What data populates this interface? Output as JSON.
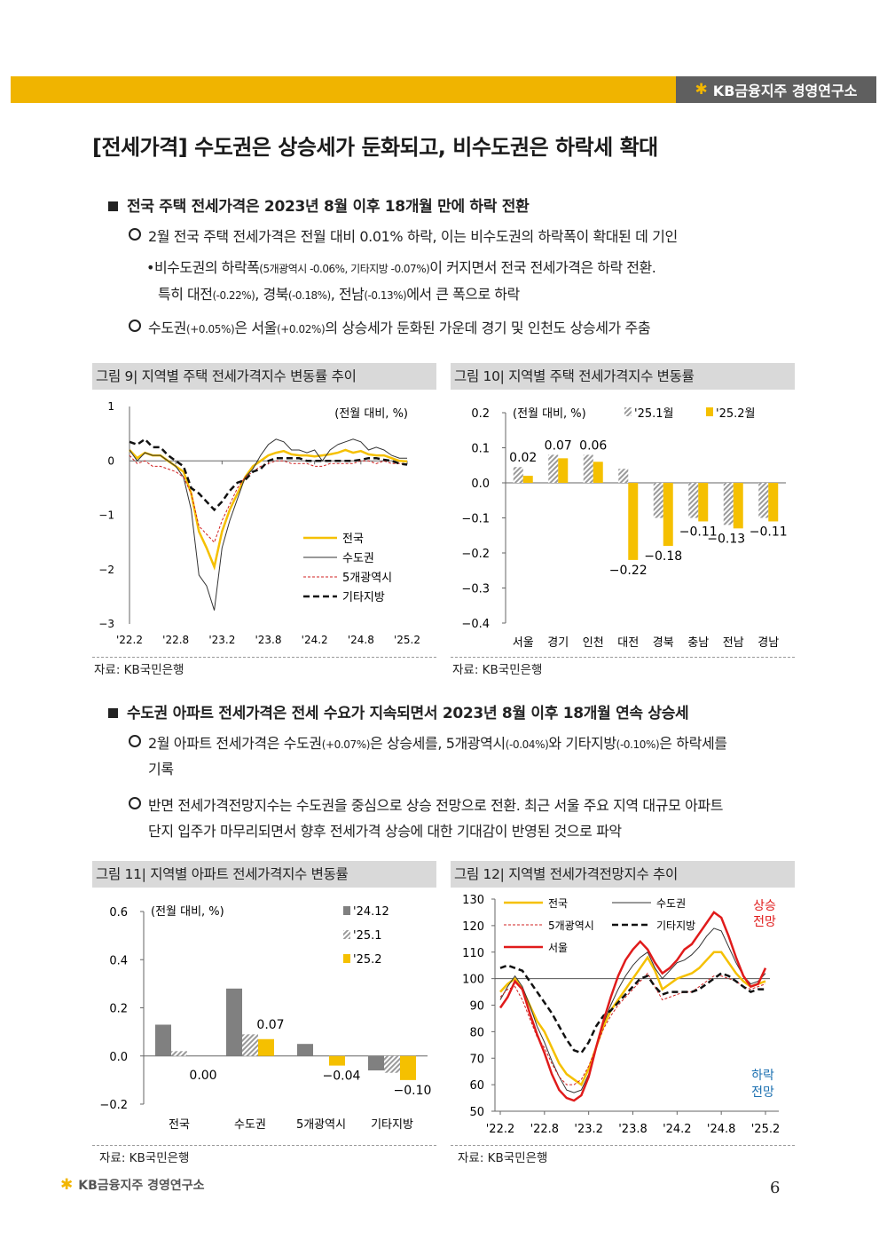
{
  "header": {
    "brand": "KB금융지주 경영연구소"
  },
  "title": "[전세가격] 수도권은 상승세가 둔화되고, 비수도권은 하락세 확대",
  "section1": {
    "heading": "전국 주택 전세가격은 2023년 8월 이후 18개월 만에 하락 전환",
    "bullet1": "2월 전국 주택 전세가격은 전월 대비 0.01% 하락, 이는 비수도권의 하락폭이 확대된 데 기인",
    "sub1_a": "비수도권의 하락폭",
    "sub1_b": "(5개광역시 -0.06%, 기타지방 -0.07%)",
    "sub1_c": "이 커지면서 전국 전세가격은 하락 전환.",
    "sub1_d": "특히 대전",
    "sub1_e": "(-0.22%)",
    "sub1_f": ", 경북",
    "sub1_g": "(-0.18%)",
    "sub1_h": ", 전남",
    "sub1_i": "(-0.13%)",
    "sub1_j": "에서 큰 폭으로 하락",
    "bullet2_a": "수도권",
    "bullet2_b": "(+0.05%)",
    "bullet2_c": "은 서울",
    "bullet2_d": "(+0.02%)",
    "bullet2_e": "의 상승세가 둔화된 가운데 경기 및 인천도 상승세가 주춤"
  },
  "section2": {
    "heading": "수도권 아파트 전세가격은 전세 수요가 지속되면서 2023년 8월 이후 18개월 연속 상승세",
    "bullet1_a": "2월 아파트 전세가격은 수도권",
    "bullet1_b": "(+0.07%)",
    "bullet1_c": "은 상승세를, 5개광역시",
    "bullet1_d": "(-0.04%)",
    "bullet1_e": "와 기타지방",
    "bullet1_f": "(-0.10%)",
    "bullet1_g": "은 하락세를",
    "bullet1_h": "기록",
    "bullet2_line1": "반면 전세가격전망지수는 수도권을 중심으로 상승 전망으로 전환. 최근 서울 주요 지역 대규모 아파트",
    "bullet2_line2": "단지 입주가 마무리되면서 향후 전세가격 상승에 대한 기대감이 반영된 것으로 파악"
  },
  "figures": {
    "fig9": {
      "caption": "그림 9| 지역별 주택 전세가격지수 변동률 추이",
      "source": "자료: KB국민은행"
    },
    "fig10": {
      "caption": "그림 10| 지역별 주택 전세가격지수 변동률",
      "source": "자료: KB국민은행"
    },
    "fig11": {
      "caption": "그림 11| 지역별 아파트 전세가격지수 변동률",
      "source": "자료: KB국민은행"
    },
    "fig12": {
      "caption": "그림 12| 지역별 전세가격전망지수 추이",
      "source": "자료: KB국민은행"
    }
  },
  "chart_data": [
    {
      "id": "fig9",
      "type": "line",
      "unit_note": "(전월 대비, %)",
      "ylim": [
        -3,
        1
      ],
      "yticks": [
        "1",
        "0",
        "−1",
        "−2",
        "−3"
      ],
      "xticks": [
        "'22.2",
        "'22.8",
        "'23.2",
        "'23.8",
        "'24.2",
        "'24.8",
        "'25.2"
      ],
      "x": [
        "2022-02",
        "2022-03",
        "2022-04",
        "2022-05",
        "2022-06",
        "2022-07",
        "2022-08",
        "2022-09",
        "2022-10",
        "2022-11",
        "2022-12",
        "2023-01",
        "2023-02",
        "2023-03",
        "2023-04",
        "2023-05",
        "2023-06",
        "2023-07",
        "2023-08",
        "2023-09",
        "2023-10",
        "2023-11",
        "2023-12",
        "2024-01",
        "2024-02",
        "2024-03",
        "2024-04",
        "2024-05",
        "2024-06",
        "2024-07",
        "2024-08",
        "2024-09",
        "2024-10",
        "2024-11",
        "2024-12",
        "2025-01",
        "2025-02"
      ],
      "series": [
        {
          "name": "전국",
          "color": "#f5c000",
          "values": [
            0.2,
            0.05,
            0.15,
            0.1,
            0.1,
            0.0,
            -0.1,
            -0.2,
            -0.6,
            -1.3,
            -1.6,
            -1.95,
            -1.3,
            -0.9,
            -0.6,
            -0.3,
            -0.1,
            0.0,
            0.1,
            0.15,
            0.18,
            0.12,
            0.1,
            0.1,
            0.08,
            0.1,
            0.12,
            0.15,
            0.2,
            0.15,
            0.18,
            0.12,
            0.1,
            0.1,
            0.05,
            0.0,
            -0.01
          ]
        },
        {
          "name": "수도권",
          "color": "#333333",
          "values": [
            0.2,
            0.0,
            0.15,
            0.1,
            0.1,
            0.0,
            -0.1,
            -0.3,
            -0.9,
            -2.1,
            -2.3,
            -2.75,
            -1.6,
            -1.1,
            -0.7,
            -0.3,
            -0.15,
            0.1,
            0.3,
            0.4,
            0.35,
            0.2,
            0.2,
            0.15,
            0.2,
            0.0,
            0.2,
            0.3,
            0.35,
            0.4,
            0.35,
            0.2,
            0.25,
            0.2,
            0.1,
            0.05,
            0.05
          ]
        },
        {
          "name": "5개광역시",
          "color": "#d02020",
          "values": [
            0.1,
            -0.05,
            0.0,
            -0.1,
            -0.1,
            -0.15,
            -0.2,
            -0.3,
            -0.6,
            -1.2,
            -1.35,
            -1.5,
            -1.1,
            -0.8,
            -0.5,
            -0.3,
            -0.2,
            -0.1,
            -0.05,
            0.0,
            0.0,
            -0.05,
            -0.05,
            -0.05,
            -0.1,
            -0.1,
            -0.05,
            -0.05,
            -0.05,
            -0.05,
            0.0,
            0.0,
            -0.05,
            0.0,
            -0.05,
            -0.05,
            -0.06
          ]
        },
        {
          "name": "기타지방",
          "color": "#111111",
          "values": [
            0.35,
            0.3,
            0.4,
            0.25,
            0.25,
            0.1,
            0.0,
            -0.1,
            -0.5,
            -0.6,
            -0.75,
            -0.9,
            -0.75,
            -0.55,
            -0.4,
            -0.35,
            -0.2,
            -0.15,
            0.0,
            0.05,
            0.05,
            0.05,
            0.05,
            0.0,
            0.0,
            0.0,
            0.0,
            0.0,
            0.0,
            0.0,
            0.02,
            0.05,
            0.05,
            0.02,
            0.0,
            -0.05,
            -0.07
          ]
        }
      ]
    },
    {
      "id": "fig10",
      "type": "bar",
      "unit_note": "(전월 대비, %)",
      "ylim": [
        -0.4,
        0.2
      ],
      "yticks": [
        "0.2",
        "0.1",
        "0.0",
        "−0.1",
        "−0.2",
        "−0.3",
        "−0.4"
      ],
      "categories": [
        "서울",
        "경기",
        "인천",
        "대전",
        "경북",
        "충남",
        "전남",
        "경남"
      ],
      "series": [
        {
          "name": "'25.1월",
          "color": "#aaaaaa",
          "values": [
            0.045,
            0.08,
            0.08,
            0.04,
            -0.1,
            -0.1,
            -0.12,
            -0.1
          ]
        },
        {
          "name": "'25.2월",
          "color": "#f5c000",
          "values": [
            0.02,
            0.07,
            0.06,
            -0.22,
            -0.18,
            -0.11,
            -0.13,
            -0.11
          ]
        }
      ],
      "data_labels": [
        "0.02",
        "0.07",
        "0.06",
        "−0.22",
        "−0.18",
        "−0.11",
        "−0.13",
        "−0.11"
      ]
    },
    {
      "id": "fig11",
      "type": "bar",
      "unit_note": "(전월 대비, %)",
      "ylim": [
        -0.2,
        0.6
      ],
      "yticks": [
        "0.6",
        "0.4",
        "0.2",
        "0.0",
        "−0.2"
      ],
      "categories": [
        "전국",
        "수도권",
        "5개광역시",
        "기타지방"
      ],
      "series": [
        {
          "name": "'24.12",
          "color": "#808080",
          "values": [
            0.13,
            0.28,
            0.05,
            -0.06
          ]
        },
        {
          "name": "'25.1",
          "color": "#aaaaaa",
          "values": [
            0.02,
            0.09,
            0.0,
            -0.07
          ]
        },
        {
          "name": "'25.2",
          "color": "#f5c000",
          "values": [
            0.0,
            0.07,
            -0.04,
            -0.1
          ]
        }
      ],
      "data_labels": [
        "0.00",
        "0.07",
        "−0.04",
        "−0.10"
      ]
    },
    {
      "id": "fig12",
      "type": "line",
      "ylim": [
        50,
        130
      ],
      "yticks": [
        "130",
        "120",
        "110",
        "100",
        "90",
        "80",
        "70",
        "60",
        "50"
      ],
      "xticks": [
        "'22.2",
        "'22.8",
        "'23.2",
        "'23.8",
        "'24.2",
        "'24.8",
        "'25.2"
      ],
      "annotations": {
        "up_line1": "상승",
        "up_line2": "전망",
        "down_line1": "하락",
        "down_line2": "전망"
      },
      "x": [
        "2022-02",
        "2022-03",
        "2022-04",
        "2022-05",
        "2022-06",
        "2022-07",
        "2022-08",
        "2022-09",
        "2022-10",
        "2022-11",
        "2022-12",
        "2023-01",
        "2023-02",
        "2023-03",
        "2023-04",
        "2023-05",
        "2023-06",
        "2023-07",
        "2023-08",
        "2023-09",
        "2023-10",
        "2023-11",
        "2023-12",
        "2024-01",
        "2024-02",
        "2024-03",
        "2024-04",
        "2024-05",
        "2024-06",
        "2024-07",
        "2024-08",
        "2024-09",
        "2024-10",
        "2024-11",
        "2024-12",
        "2025-01",
        "2025-02"
      ],
      "series": [
        {
          "name": "전국",
          "color": "#f5c000",
          "values": [
            95,
            98,
            100,
            96,
            90,
            84,
            80,
            74,
            68,
            64,
            62,
            60,
            66,
            74,
            82,
            88,
            92,
            96,
            100,
            104,
            108,
            103,
            96,
            98,
            100,
            101,
            102,
            104,
            107,
            110,
            110,
            106,
            102,
            99,
            97,
            98,
            99
          ]
        },
        {
          "name": "수도권",
          "color": "#333333",
          "values": [
            92,
            97,
            101,
            97,
            90,
            82,
            76,
            69,
            63,
            58,
            57,
            58,
            64,
            74,
            83,
            90,
            96,
            101,
            105,
            108,
            110,
            104,
            100,
            103,
            106,
            107,
            109,
            112,
            116,
            119,
            118,
            112,
            106,
            101,
            98,
            99,
            102
          ]
        },
        {
          "name": "5개광역시",
          "color": "#d02020",
          "values": [
            93,
            96,
            97,
            92,
            85,
            78,
            74,
            68,
            63,
            60,
            60,
            62,
            67,
            74,
            81,
            86,
            90,
            93,
            96,
            99,
            102,
            97,
            92,
            93,
            94,
            95,
            95,
            97,
            99,
            101,
            101,
            100,
            99,
            97,
            96,
            97,
            98
          ]
        },
        {
          "name": "기타지방",
          "color": "#111111",
          "values": [
            104,
            105,
            104,
            103,
            99,
            95,
            91,
            87,
            82,
            77,
            73,
            72,
            76,
            82,
            86,
            88,
            91,
            94,
            97,
            100,
            101,
            97,
            94,
            95,
            95,
            95,
            95,
            96,
            98,
            100,
            102,
            101,
            99,
            97,
            95,
            96,
            96
          ]
        },
        {
          "name": "서울",
          "color": "#e01b1b",
          "values": [
            89,
            93,
            99,
            96,
            87,
            79,
            72,
            64,
            58,
            55,
            54,
            56,
            63,
            74,
            84,
            93,
            101,
            107,
            111,
            114,
            111,
            106,
            102,
            104,
            107,
            111,
            113,
            117,
            121,
            125,
            123,
            116,
            108,
            101,
            97,
            98,
            104
          ]
        }
      ]
    }
  ],
  "footer": {
    "brand": "KB금융지주 경영연구소",
    "page_number": "6"
  }
}
